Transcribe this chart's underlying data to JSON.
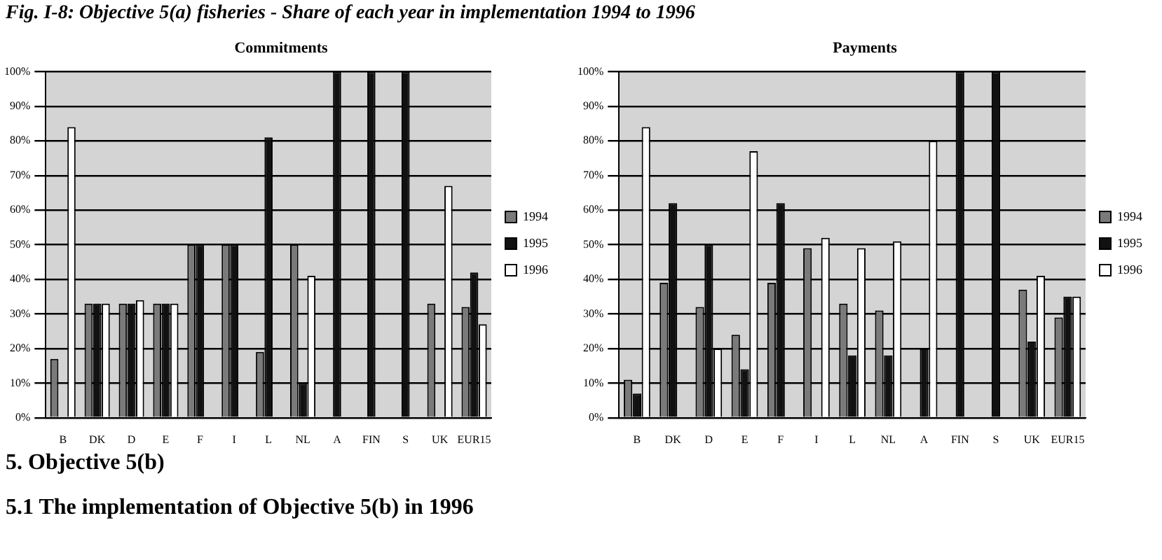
{
  "chart_data": [
    {
      "type": "bar",
      "title": "Commitments",
      "annotations": [
        "Fig. I-8: Objective 5(a) fisheries - Share of each year in implementation 1994 to 1996",
        "5.    Objective 5(b)",
        "5.1  The implementation of Objective 5(b) in 1996"
      ],
      "categories": [
        "B",
        "DK",
        "D",
        "E",
        "F",
        "I",
        "L",
        "NL",
        "A",
        "FIN",
        "S",
        "UK",
        "EUR15"
      ],
      "series": [
        {
          "name": "1994",
          "color": "#7a7a7a",
          "values": [
            17,
            33,
            33,
            33,
            50,
            50,
            19,
            50,
            0,
            0,
            0,
            33,
            32
          ]
        },
        {
          "name": "1995",
          "color": "#111111",
          "values": [
            0,
            33,
            33,
            33,
            50,
            50,
            81,
            10,
            100,
            100,
            100,
            0,
            42
          ]
        },
        {
          "name": "1996",
          "color": "#ffffff",
          "values": [
            84,
            33,
            34,
            33,
            0,
            0,
            0,
            41,
            0,
            0,
            0,
            67,
            27
          ]
        }
      ],
      "ylim": [
        0,
        100
      ],
      "yticks": [
        {
          "value": 0,
          "label": "0%"
        },
        {
          "value": 10,
          "label": "10%"
        },
        {
          "value": 20,
          "label": "20%"
        },
        {
          "value": 30,
          "label": "30%"
        },
        {
          "value": 40,
          "label": "40%"
        },
        {
          "value": 50,
          "label": "50%"
        },
        {
          "value": 60,
          "label": "60%"
        },
        {
          "value": 70,
          "label": "70%"
        },
        {
          "value": 80,
          "label": "80%"
        },
        {
          "value": 90,
          "label": "90%"
        },
        {
          "value": 100,
          "label": "100%"
        }
      ],
      "grid": "y",
      "legend": "right"
    },
    {
      "type": "bar",
      "title": "Payments",
      "categories": [
        "B",
        "DK",
        "D",
        "E",
        "F",
        "I",
        "L",
        "NL",
        "A",
        "FIN",
        "S",
        "UK",
        "EUR15"
      ],
      "series": [
        {
          "name": "1994",
          "color": "#7a7a7a",
          "values": [
            11,
            39,
            32,
            24,
            39,
            49,
            33,
            31,
            0,
            0,
            0,
            37,
            29
          ]
        },
        {
          "name": "1995",
          "color": "#111111",
          "values": [
            7,
            62,
            50,
            14,
            62,
            0,
            18,
            18,
            20,
            100,
            100,
            22,
            35
          ]
        },
        {
          "name": "1996",
          "color": "#ffffff",
          "values": [
            84,
            0,
            20,
            77,
            0,
            52,
            49,
            51,
            80,
            0,
            0,
            41,
            35
          ]
        }
      ],
      "ylim": [
        0,
        100
      ],
      "yticks": [
        {
          "value": 0,
          "label": "0%"
        },
        {
          "value": 10,
          "label": "10%"
        },
        {
          "value": 20,
          "label": "20%"
        },
        {
          "value": 30,
          "label": "30%"
        },
        {
          "value": 40,
          "label": "40%"
        },
        {
          "value": 50,
          "label": "50%"
        },
        {
          "value": 60,
          "label": "60%"
        },
        {
          "value": 70,
          "label": "70%"
        },
        {
          "value": 80,
          "label": "80%"
        },
        {
          "value": 90,
          "label": "90%"
        },
        {
          "value": 100,
          "label": "100%"
        }
      ],
      "grid": "y",
      "legend": "right"
    }
  ]
}
